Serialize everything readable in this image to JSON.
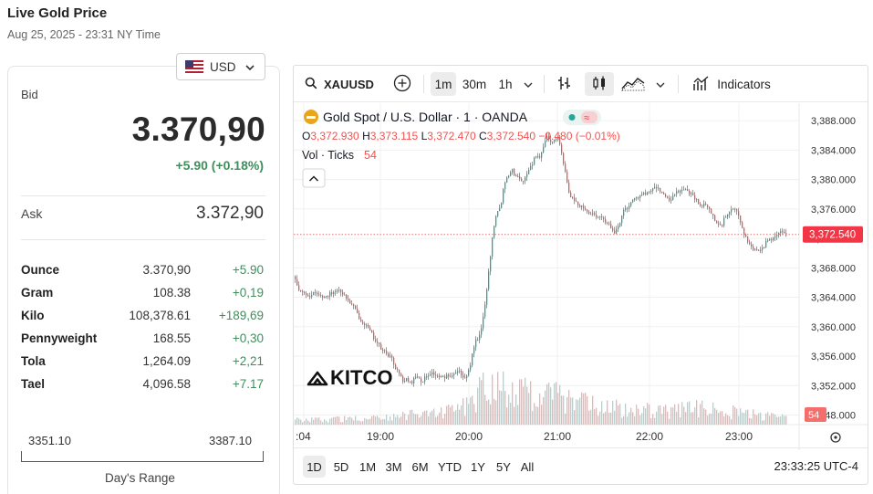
{
  "page": {
    "title": "Live Gold Price",
    "datetime": "Aug 25, 2025 - 23:31 NY Time"
  },
  "currency": {
    "code": "USD",
    "flag_icon": "us-flag-icon"
  },
  "bid": {
    "label": "Bid",
    "value": "3.370,90",
    "change": "+5.90 (+0.18%)"
  },
  "ask": {
    "label": "Ask",
    "value": "3.372,90"
  },
  "units": [
    {
      "name": "Ounce",
      "price": "3.370,90",
      "change": "+5.90"
    },
    {
      "name": "Gram",
      "price": "108.38",
      "change": "+0,19"
    },
    {
      "name": "Kilo",
      "price": "108,378.61",
      "change": "+189,69"
    },
    {
      "name": "Pennyweight",
      "price": "168.55",
      "change": "+0,30"
    },
    {
      "name": "Tola",
      "price": "1,264.09",
      "change": "+2,21"
    },
    {
      "name": "Tael",
      "price": "4,096.58",
      "change": "+7.17"
    }
  ],
  "days_range": {
    "low": "3351.10",
    "high": "3387.10",
    "label": "Day's Range"
  },
  "toolbar": {
    "symbol": "XAUUSD",
    "intervals": [
      "1m",
      "30m",
      "1h"
    ],
    "active_interval": "1m",
    "indicators_label": "Indicators"
  },
  "chart_legend": {
    "title": "Gold Spot / U.S. Dollar · 1 · OANDA",
    "ohlc": {
      "o_label": "O",
      "o": "3,372.930",
      "h_label": "H",
      "h": "3,373.115",
      "l_label": "L",
      "l": "3,372.470",
      "c_label": "C",
      "c": "3,372.540",
      "change": "−0.480 (−0.01%)"
    },
    "volume_label": "Vol · Ticks",
    "volume_value": "54"
  },
  "watermark": "KITCO",
  "time_ranges": [
    "1D",
    "5D",
    "1M",
    "3M",
    "6M",
    "YTD",
    "1Y",
    "5Y",
    "All"
  ],
  "active_range": "1D",
  "clock": "23:33:25 UTC-4",
  "colors": {
    "up": "#26a69a",
    "down": "#ef5350",
    "change_green": "#3f8f5c",
    "price_tag": "#f23645"
  },
  "chart_data": {
    "type": "candlestick",
    "x_ticks": [
      ":04",
      "19:00",
      "20:00",
      "21:00",
      "22:00",
      "23:00"
    ],
    "y_ticks": [
      "3,388.000",
      "3,384.000",
      "3,380.000",
      "3,376.000",
      "3,372.000",
      "3,368.000",
      "3,364.000",
      "3,360.000",
      "3,356.000",
      "3,352.000",
      "3,348.000"
    ],
    "ylim": [
      3348,
      3390
    ],
    "last_price": "3,372.540",
    "last_volume": "54",
    "price_path": [
      [
        0,
        3366.8
      ],
      [
        4,
        3365.2
      ],
      [
        8,
        3364.6
      ],
      [
        14,
        3364.4
      ],
      [
        18,
        3364.2
      ],
      [
        22,
        3364.6
      ],
      [
        26,
        3364.3
      ],
      [
        32,
        3364.0
      ],
      [
        38,
        3364.4
      ],
      [
        44,
        3364.9
      ],
      [
        50,
        3365.0
      ],
      [
        55,
        3364.2
      ],
      [
        60,
        3363.4
      ],
      [
        66,
        3362.5
      ],
      [
        72,
        3361.0
      ],
      [
        78,
        3360.3
      ],
      [
        84,
        3359.2
      ],
      [
        88,
        3358.3
      ],
      [
        92,
        3357.6
      ],
      [
        96,
        3356.8
      ],
      [
        100,
        3356.5
      ],
      [
        104,
        3356.0
      ],
      [
        108,
        3355.4
      ],
      [
        110,
        3354.6
      ],
      [
        114,
        3353.8
      ],
      [
        118,
        3352.8
      ],
      [
        121,
        3352.6
      ],
      [
        124,
        3352.9
      ],
      [
        128,
        3352.4
      ],
      [
        134,
        3353.4
      ],
      [
        140,
        3352.6
      ],
      [
        144,
        3353.2
      ],
      [
        150,
        3353.8
      ],
      [
        156,
        3353.3
      ],
      [
        164,
        3353.0
      ],
      [
        168,
        3353.5
      ],
      [
        172,
        3353.4
      ],
      [
        176,
        3354.0
      ],
      [
        182,
        3354.0
      ],
      [
        186,
        3352.6
      ],
      [
        190,
        3353.4
      ],
      [
        194,
        3355.5
      ],
      [
        198,
        3358.0
      ],
      [
        202,
        3358.2
      ],
      [
        206,
        3360.3
      ],
      [
        210,
        3364.2
      ],
      [
        214,
        3368.5
      ],
      [
        218,
        3373.2
      ],
      [
        222,
        3375.8
      ],
      [
        226,
        3376.2
      ],
      [
        230,
        3379.5
      ],
      [
        234,
        3380.5
      ],
      [
        238,
        3381.4
      ],
      [
        242,
        3380.6
      ],
      [
        246,
        3380.3
      ],
      [
        252,
        3379.6
      ],
      [
        256,
        3381.4
      ],
      [
        260,
        3382.0
      ],
      [
        266,
        3383.5
      ],
      [
        270,
        3383.0
      ],
      [
        276,
        3385.8
      ],
      [
        282,
        3385.2
      ],
      [
        286,
        3385.8
      ],
      [
        290,
        3385.5
      ],
      [
        294,
        3383.0
      ],
      [
        298,
        3380.1
      ],
      [
        302,
        3377.9
      ],
      [
        306,
        3377.1
      ],
      [
        310,
        3376.8
      ],
      [
        316,
        3376.1
      ],
      [
        320,
        3375.7
      ],
      [
        326,
        3375.4
      ],
      [
        332,
        3374.6
      ],
      [
        336,
        3375.2
      ],
      [
        340,
        3374.4
      ],
      [
        344,
        3374.1
      ],
      [
        350,
        3372.6
      ],
      [
        354,
        3373.4
      ],
      [
        358,
        3374.6
      ],
      [
        362,
        3376.1
      ],
      [
        366,
        3376.3
      ],
      [
        370,
        3377.1
      ],
      [
        376,
        3377.6
      ],
      [
        382,
        3378.1
      ],
      [
        386,
        3377.9
      ],
      [
        392,
        3378.7
      ],
      [
        398,
        3378.9
      ],
      [
        404,
        3378.1
      ],
      [
        410,
        3377.1
      ],
      [
        414,
        3377.4
      ],
      [
        420,
        3378.4
      ],
      [
        428,
        3378.6
      ],
      [
        432,
        3378.3
      ],
      [
        436,
        3378.1
      ],
      [
        444,
        3376.6
      ],
      [
        452,
        3376.4
      ],
      [
        458,
        3375.3
      ],
      [
        462,
        3374.2
      ],
      [
        468,
        3373.6
      ],
      [
        472,
        3374.9
      ],
      [
        478,
        3375.6
      ],
      [
        482,
        3376.0
      ],
      [
        486,
        3375.5
      ],
      [
        492,
        3373.1
      ],
      [
        496,
        3371.7
      ],
      [
        500,
        3371.1
      ],
      [
        504,
        3370.4
      ],
      [
        510,
        3370.6
      ],
      [
        514,
        3370.8
      ],
      [
        518,
        3371.6
      ],
      [
        524,
        3372.0
      ],
      [
        528,
        3372.5
      ],
      [
        534,
        3372.9
      ],
      [
        540,
        3372.5
      ]
    ],
    "volume_profile": [
      [
        0,
        6
      ],
      [
        40,
        7
      ],
      [
        80,
        8
      ],
      [
        110,
        10
      ],
      [
        140,
        14
      ],
      [
        170,
        18
      ],
      [
        195,
        26
      ],
      [
        205,
        48
      ],
      [
        220,
        54
      ],
      [
        240,
        44
      ],
      [
        260,
        36
      ],
      [
        280,
        38
      ],
      [
        300,
        30
      ],
      [
        330,
        24
      ],
      [
        360,
        20
      ],
      [
        400,
        17
      ],
      [
        440,
        20
      ],
      [
        470,
        18
      ],
      [
        510,
        12
      ],
      [
        540,
        8
      ]
    ]
  }
}
